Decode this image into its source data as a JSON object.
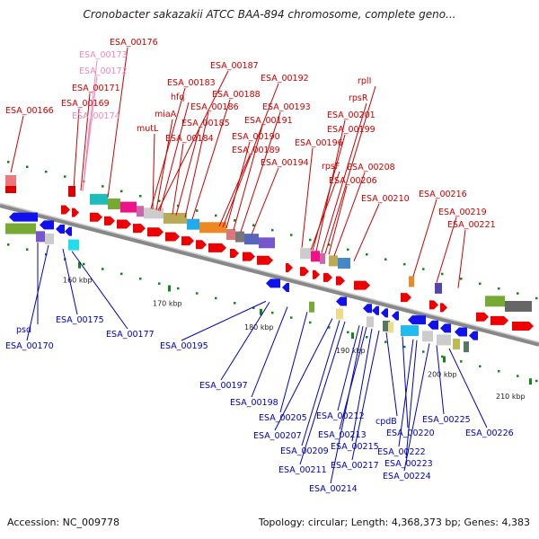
{
  "title": "Cronobacter sakazakii ATCC BAA-894 chromosome, complete geno...",
  "accession": "Accession: NC_009778",
  "summary": "Topology: circular; Length: 4,368,373 bp; Genes: 4,383",
  "colors": {
    "forward_label": "#cc0000",
    "reverse_label": "#0000bb",
    "pseudo_label": "#ee88bb",
    "forward_arrow": "#ee0000",
    "reverse_arrow": "#1111ee",
    "backbone": "#888888",
    "tick": "#118811"
  },
  "ticks": [
    {
      "label": "160 kbp"
    },
    {
      "label": "170 kbp"
    },
    {
      "label": "180 kbp"
    },
    {
      "label": "190 kbp"
    },
    {
      "label": "200 kbp"
    },
    {
      "label": "210 kbp"
    }
  ],
  "forward_genes": [
    {
      "name": "ESA_00166",
      "kind": "forward"
    },
    {
      "name": "ESA_00176",
      "kind": "forward"
    },
    {
      "name": "ESA_00173",
      "kind": "pseudo"
    },
    {
      "name": "ESA_00172",
      "kind": "pseudo"
    },
    {
      "name": "ESA_00171",
      "kind": "forward"
    },
    {
      "name": "ESA_00169",
      "kind": "forward"
    },
    {
      "name": "ESA_00174",
      "kind": "pseudo"
    },
    {
      "name": "ESA_00187",
      "kind": "forward"
    },
    {
      "name": "ESA_00183",
      "kind": "forward"
    },
    {
      "name": "hfq",
      "kind": "forward"
    },
    {
      "name": "miaA",
      "kind": "forward"
    },
    {
      "name": "mutL",
      "kind": "forward"
    },
    {
      "name": "ESA_00188",
      "kind": "forward"
    },
    {
      "name": "ESA_00186",
      "kind": "forward"
    },
    {
      "name": "ESA_00185",
      "kind": "forward"
    },
    {
      "name": "ESA_00184",
      "kind": "forward"
    },
    {
      "name": "ESA_00192",
      "kind": "forward"
    },
    {
      "name": "ESA_00193",
      "kind": "forward"
    },
    {
      "name": "ESA_00191",
      "kind": "forward"
    },
    {
      "name": "ESA_00190",
      "kind": "forward"
    },
    {
      "name": "ESA_00189",
      "kind": "forward"
    },
    {
      "name": "ESA_00194",
      "kind": "forward"
    },
    {
      "name": "rplI",
      "kind": "forward"
    },
    {
      "name": "rpsR",
      "kind": "forward"
    },
    {
      "name": "ESA_00201",
      "kind": "forward"
    },
    {
      "name": "ESA_00199",
      "kind": "forward"
    },
    {
      "name": "ESA_00196",
      "kind": "forward"
    },
    {
      "name": "rpsF",
      "kind": "forward"
    },
    {
      "name": "ESA_00208",
      "kind": "forward"
    },
    {
      "name": "ESA_00206",
      "kind": "forward"
    },
    {
      "name": "ESA_00210",
      "kind": "forward"
    },
    {
      "name": "ESA_00216",
      "kind": "forward"
    },
    {
      "name": "ESA_00219",
      "kind": "forward"
    },
    {
      "name": "ESA_00221",
      "kind": "forward"
    }
  ],
  "reverse_genes": [
    {
      "name": "psd"
    },
    {
      "name": "ESA_00170"
    },
    {
      "name": "ESA_00175"
    },
    {
      "name": "ESA_00177"
    },
    {
      "name": "ESA_00195"
    },
    {
      "name": "ESA_00197"
    },
    {
      "name": "ESA_00198"
    },
    {
      "name": "ESA_00205"
    },
    {
      "name": "ESA_00207"
    },
    {
      "name": "ESA_00209"
    },
    {
      "name": "ESA_00211"
    },
    {
      "name": "ESA_00212"
    },
    {
      "name": "ESA_00213"
    },
    {
      "name": "ESA_00215"
    },
    {
      "name": "ESA_00214"
    },
    {
      "name": "ESA_00217"
    },
    {
      "name": "cpdB"
    },
    {
      "name": "ESA_00220"
    },
    {
      "name": "ESA_00222"
    },
    {
      "name": "ESA_00223"
    },
    {
      "name": "ESA_00224"
    },
    {
      "name": "ESA_00225"
    },
    {
      "name": "ESA_00226"
    }
  ]
}
